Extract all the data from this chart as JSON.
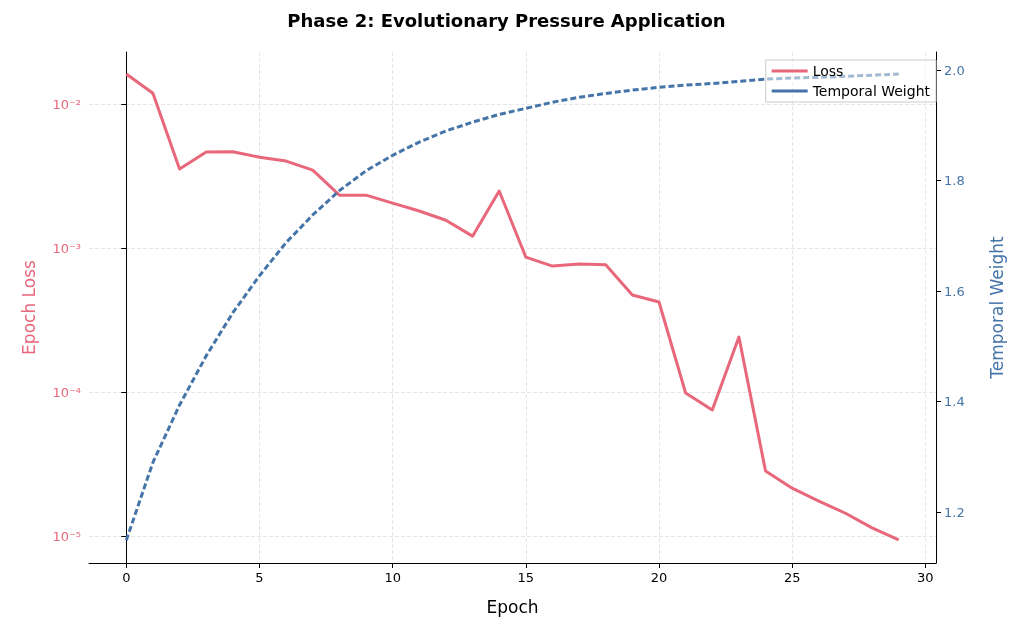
{
  "chart_data": {
    "type": "line",
    "title": "Phase 2: Evolutionary Pressure Application",
    "xlabel": "Epoch",
    "ylabel": "Epoch Loss",
    "y2label": "Temporal Weight",
    "x": [
      0,
      1,
      2,
      3,
      4,
      5,
      6,
      7,
      8,
      9,
      10,
      11,
      12,
      13,
      14,
      15,
      16,
      17,
      18,
      19,
      20,
      21,
      22,
      23,
      24,
      25,
      26,
      27,
      28,
      29
    ],
    "series": [
      {
        "name": "Loss",
        "color": "#e8677a",
        "line_style": "solid",
        "values": [
          0.0162,
          0.0119,
          0.00354,
          0.00464,
          0.00466,
          0.00428,
          0.00402,
          0.00348,
          0.00233,
          0.00233,
          0.00205,
          0.00181,
          0.00156,
          0.00121,
          0.00249,
          0.000866,
          0.00075,
          0.000774,
          0.000766,
          0.000472,
          0.000422,
          9.85e-05,
          7.5e-05,
          0.000241,
          2.83e-05,
          2.15e-05,
          1.75e-05,
          1.44e-05,
          1.14e-05,
          9.4e-06
        ]
      },
      {
        "name": "Temporal Weight",
        "color": "#4575a8",
        "line_style": "dashed",
        "axis": "y2",
        "values": [
          1.149,
          1.29,
          1.394,
          1.483,
          1.561,
          1.628,
          1.688,
          1.738,
          1.782,
          1.818,
          1.846,
          1.87,
          1.89,
          1.906,
          1.92,
          1.931,
          1.942,
          1.951,
          1.958,
          1.964,
          1.969,
          1.973,
          1.976,
          1.98,
          1.984,
          1.986,
          1.987,
          1.989,
          1.991,
          1.993
        ]
      }
    ],
    "xlim": [
      -1.4,
      30.4
    ],
    "xticks": [
      0,
      5,
      10,
      15,
      20,
      25,
      30
    ],
    "log": "y",
    "ylim": [
      6.5e-06,
      0.023
    ],
    "yticks": [
      {
        "value": 1e-05,
        "label": "10⁻⁵"
      },
      {
        "value": 0.0001,
        "label": "10⁻⁴"
      },
      {
        "value": 0.001,
        "label": "10⁻³"
      },
      {
        "value": 0.01,
        "label": "10⁻²"
      }
    ],
    "y2lim": [
      1.108,
      2.033
    ],
    "y2ticks": [
      {
        "value": 1.2,
        "label": "1.2"
      },
      {
        "value": 1.4,
        "label": "1.4"
      },
      {
        "value": 1.6,
        "label": "1.6"
      },
      {
        "value": 1.8,
        "label": "1.8"
      },
      {
        "value": 2,
        "label": "2.0"
      }
    ],
    "grid": true,
    "legend": "top right",
    "marker": "none"
  }
}
